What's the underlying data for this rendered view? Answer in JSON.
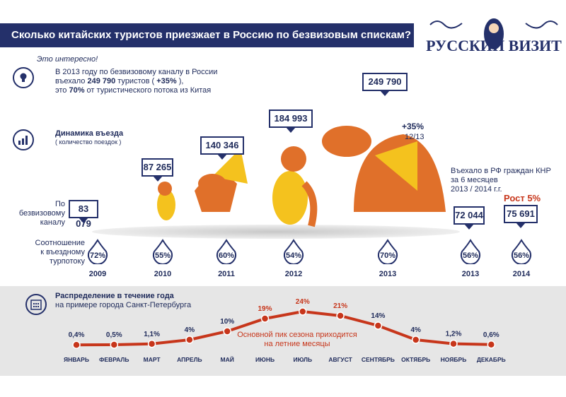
{
  "header": {
    "title": "Сколько китайских туристов приезжает в Россию по безвизовым спискам?",
    "logo_text": "РУССКИЙ ВИЗИТ"
  },
  "fact": {
    "label": "Это интересно!",
    "line1": "В 2013 году по безвизовому каналу в России",
    "line2_pre": "въехало ",
    "line2_bold": "249 790",
    "line2_mid": " туристов ( ",
    "line2_bold2": "+35%",
    "line2_post": " ),",
    "line3_pre": "это ",
    "line3_bold": "70%",
    "line3_post": " от туристического потока из Китая",
    "icon": "lightbulb-icon"
  },
  "dynamics": {
    "title": "Динамика въезда",
    "subtitle": "( количество поездок )",
    "icon": "bar-chart-icon",
    "row_label1": "По безвизовому",
    "row_label2": "каналу",
    "ratio_label1": "Соотношение",
    "ratio_label2": "к въездному",
    "ratio_label3": "турпотоку",
    "growth": "+35%",
    "growth_period": "12/13",
    "half_note1": "Въехало в РФ граждан КНР",
    "half_note2": "за 6 месяцев",
    "half_note3": "2013 / 2014 г.г.",
    "half_growth": "Рост 5%"
  },
  "chart_data": [
    {
      "type": "bar",
      "title": "Динамика въезда",
      "categories": [
        "2009",
        "2010",
        "2011",
        "2012",
        "2013",
        "2013",
        "2014"
      ],
      "values": [
        "83 079",
        "87 265",
        "140 346",
        "184 993",
        "249 790",
        "72 044",
        "75 691"
      ],
      "ratios": [
        "72%",
        "55%",
        "60%",
        "54%",
        "70%",
        "56%",
        "56%"
      ]
    },
    {
      "type": "line",
      "title": "Распределение в течение года",
      "subtitle": "на примере города Санкт-Петербурга",
      "annotation1": "Основной пик сезона приходится",
      "annotation2": "на летние месяцы",
      "categories": [
        "ЯНВАРЬ",
        "ФЕВРАЛЬ",
        "МАРТ",
        "АПРЕЛЬ",
        "МАЙ",
        "ИЮНЬ",
        "ИЮЛЬ",
        "АВГУСТ",
        "СЕНТЯБРЬ",
        "ОКТЯБРЬ",
        "НОЯБРЬ",
        "ДЕКАБРЬ"
      ],
      "values": [
        0.4,
        0.5,
        1.1,
        4,
        10,
        19,
        24,
        21,
        14,
        4,
        1.2,
        0.6
      ],
      "labels": [
        "0,4%",
        "0,5%",
        "1,1%",
        "4%",
        "10%",
        "19%",
        "24%",
        "21%",
        "14%",
        "4%",
        "1,2%",
        "0,6%"
      ],
      "highlight": [
        5,
        6,
        7
      ],
      "color": "#c7361b",
      "label_color": "#1e2a5a",
      "highlight_color": "#c7361b"
    }
  ],
  "colors": {
    "navy": "#24306a",
    "red": "#c7361b",
    "band": "#e6e6e6",
    "dragon": "#e0702a",
    "dragon_yellow": "#f4c21e"
  }
}
